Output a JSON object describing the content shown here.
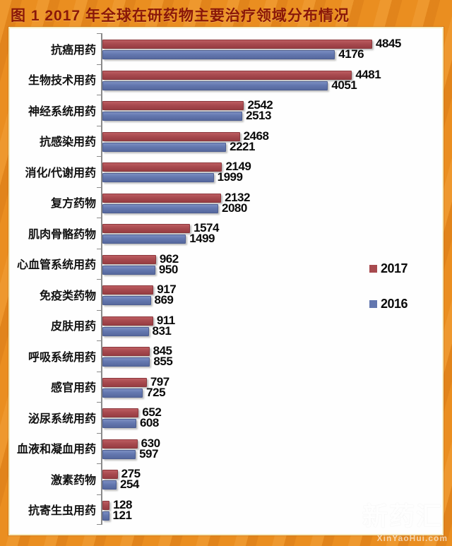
{
  "title": "图 1  2017 年全球在研药物主要治疗领域分布情况",
  "watermark": {
    "name": "新药汇",
    "url_text": "XinYaoHui.com"
  },
  "colors": {
    "frame_orange": "#e7891d",
    "title_red": "#8a1708",
    "bar_2017_red": "#a84a4f",
    "bar_2016_blue": "#6377af",
    "panel_bg": "#fefefe"
  },
  "chart_data": {
    "type": "bar",
    "orientation": "horizontal",
    "title": "图 1  2017 年全球在研药物主要治疗领域分布情况",
    "xlabel": "",
    "ylabel": "",
    "xlim": [
      0,
      6100
    ],
    "grid": false,
    "legend_position": "right-middle",
    "value_labels": true,
    "categories": [
      "抗癌用药",
      "生物技术用药",
      "神经系统用药",
      "抗感染用药",
      "消化/代谢用药",
      "复方药物",
      "肌肉骨骼药物",
      "心血管系统用药",
      "免疫类药物",
      "皮肤用药",
      "呼吸系统用药",
      "感官用药",
      "泌尿系统用药",
      "血液和凝血用药",
      "激素药物",
      "抗寄生虫用药"
    ],
    "series": [
      {
        "name": "2017",
        "color": "#a84a4f",
        "values": [
          4845,
          4481,
          2542,
          2468,
          2149,
          2132,
          1574,
          962,
          917,
          911,
          845,
          797,
          652,
          630,
          275,
          128
        ]
      },
      {
        "name": "2016",
        "color": "#6377af",
        "values": [
          4176,
          4051,
          2513,
          2221,
          1999,
          2080,
          1499,
          950,
          869,
          831,
          855,
          725,
          608,
          597,
          254,
          121
        ]
      }
    ]
  }
}
